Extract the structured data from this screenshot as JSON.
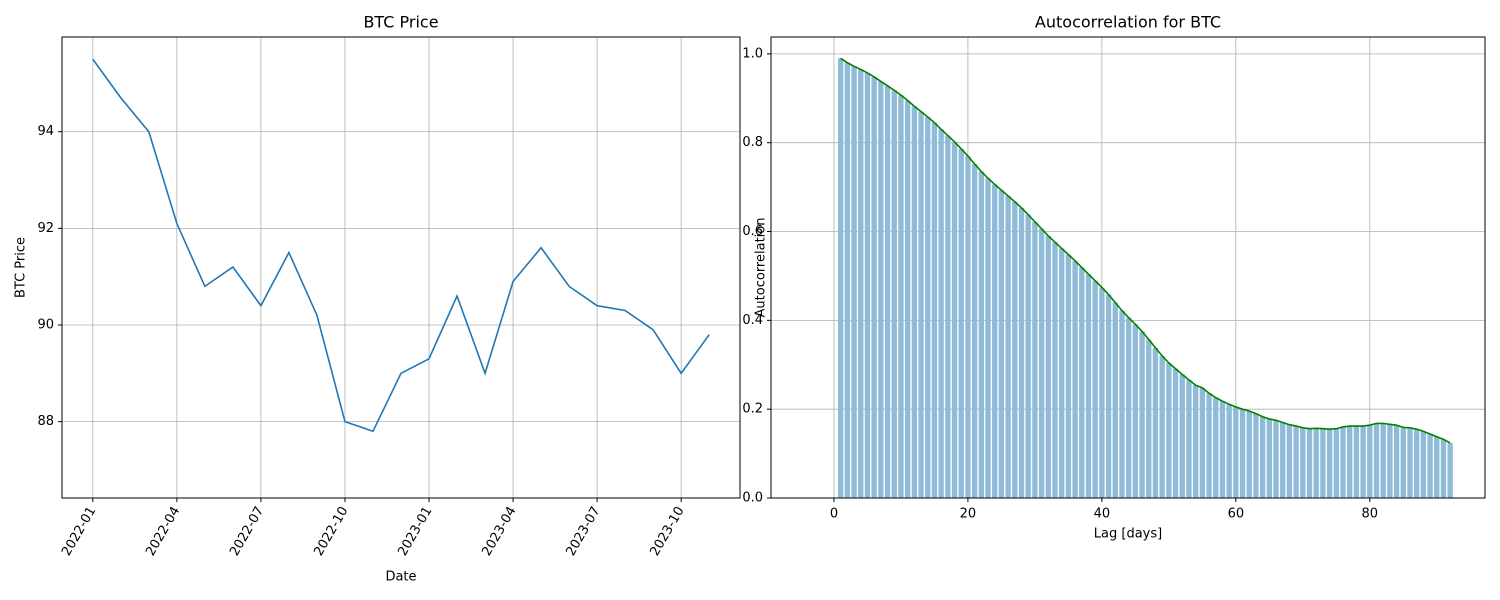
{
  "chart_data": [
    {
      "type": "line",
      "title": "BTC Price",
      "x_label": "Date",
      "y_label": "BTC Price",
      "x": [
        "2022-01",
        "2022-02",
        "2022-03",
        "2022-04",
        "2022-05",
        "2022-06",
        "2022-07",
        "2022-08",
        "2022-09",
        "2022-10",
        "2022-11",
        "2022-12",
        "2023-01",
        "2023-02",
        "2023-03",
        "2023-04",
        "2023-05",
        "2023-06",
        "2023-07",
        "2023-08",
        "2023-09",
        "2023-10",
        "2023-11"
      ],
      "values": [
        95.5,
        94.7,
        94.0,
        92.1,
        90.8,
        91.2,
        90.4,
        91.5,
        90.2,
        88.0,
        87.8,
        89.0,
        89.3,
        90.6,
        89.0,
        90.9,
        91.6,
        90.8,
        90.4,
        90.3,
        89.9,
        89.0,
        89.8
      ],
      "color": "#1f77b4",
      "xticks": [
        "2022-01",
        "2022-04",
        "2022-07",
        "2022-10",
        "2023-01",
        "2023-04",
        "2023-07",
        "2023-10"
      ],
      "ylim": [
        86.42,
        95.96
      ],
      "yticks": [
        88,
        90,
        92,
        94
      ],
      "grid": true
    },
    {
      "type": "bar",
      "title": "Autocorrelation for BTC",
      "x_label": "Lag [days]",
      "y_label": "Autocorrelation",
      "x": [
        1,
        2,
        3,
        4,
        5,
        6,
        7,
        8,
        9,
        10,
        11,
        12,
        13,
        14,
        15,
        16,
        17,
        18,
        19,
        20,
        21,
        22,
        23,
        24,
        25,
        26,
        27,
        28,
        29,
        30,
        31,
        32,
        33,
        34,
        35,
        36,
        37,
        38,
        39,
        40,
        41,
        42,
        43,
        44,
        45,
        46,
        47,
        48,
        49,
        50,
        51,
        52,
        53,
        54,
        55,
        56,
        57,
        58,
        59,
        60,
        61,
        62,
        63,
        64,
        65,
        66,
        67,
        68,
        69,
        70,
        71,
        72,
        73,
        74,
        75,
        76,
        77,
        78,
        79,
        80,
        81,
        82,
        83,
        84,
        85,
        86,
        87,
        88,
        89,
        90,
        91,
        92
      ],
      "values": [
        0.99,
        0.98,
        0.972,
        0.965,
        0.957,
        0.948,
        0.938,
        0.928,
        0.918,
        0.907,
        0.895,
        0.882,
        0.87,
        0.858,
        0.845,
        0.83,
        0.816,
        0.802,
        0.786,
        0.77,
        0.752,
        0.735,
        0.72,
        0.706,
        0.693,
        0.68,
        0.667,
        0.653,
        0.638,
        0.622,
        0.606,
        0.59,
        0.576,
        0.562,
        0.548,
        0.534,
        0.519,
        0.504,
        0.489,
        0.474,
        0.458,
        0.44,
        0.422,
        0.406,
        0.391,
        0.375,
        0.357,
        0.338,
        0.32,
        0.304,
        0.291,
        0.278,
        0.266,
        0.254,
        0.248,
        0.236,
        0.226,
        0.218,
        0.211,
        0.205,
        0.2,
        0.196,
        0.19,
        0.183,
        0.178,
        0.175,
        0.17,
        0.165,
        0.162,
        0.158,
        0.156,
        0.157,
        0.156,
        0.155,
        0.156,
        0.16,
        0.162,
        0.162,
        0.162,
        0.164,
        0.168,
        0.168,
        0.166,
        0.164,
        0.159,
        0.158,
        0.155,
        0.15,
        0.144,
        0.138,
        0.132,
        0.124
      ],
      "color": "#8fbbd9",
      "line_color": "green",
      "xlim": [
        -9.4,
        97.2
      ],
      "xticks": [
        0,
        20,
        40,
        60,
        80
      ],
      "ylim": [
        0,
        1.038
      ],
      "yticks": [
        {
          "value": 0,
          "label": "0.0"
        },
        {
          "value": 0.2,
          "label": "0.2"
        },
        {
          "value": 0.4,
          "label": "0.4"
        },
        {
          "value": 0.6,
          "label": "0.6"
        },
        {
          "value": 0.8,
          "label": "0.8"
        },
        {
          "value": 1,
          "label": "1.0"
        }
      ],
      "grid": true
    }
  ]
}
